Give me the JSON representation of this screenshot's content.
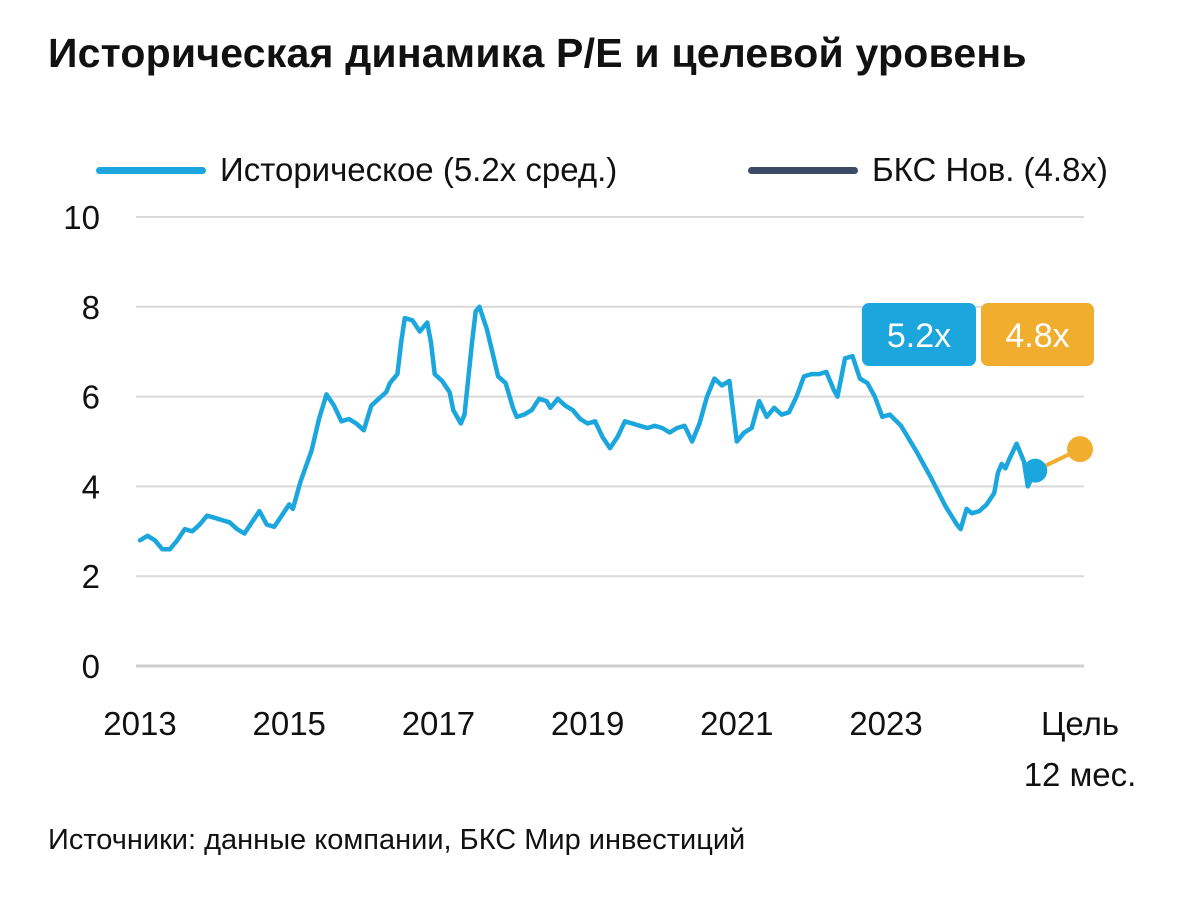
{
  "chart_data": {
    "type": "line",
    "title": "Историческая динамика P/E и целевой уровень",
    "source": "Источники: данные компании, БКС Мир инвестиций",
    "ylim": [
      0,
      10
    ],
    "yticks": [
      0,
      2,
      4,
      6,
      8,
      10
    ],
    "xlim": [
      2013,
      2025.6
    ],
    "xticks": [
      {
        "x": 2013,
        "label": "2013"
      },
      {
        "x": 2015,
        "label": "2015"
      },
      {
        "x": 2017,
        "label": "2017"
      },
      {
        "x": 2019,
        "label": "2019"
      },
      {
        "x": 2021,
        "label": "2021"
      },
      {
        "x": 2023,
        "label": "2023"
      }
    ],
    "target_tick": {
      "line1": "Цель",
      "line2": "12 мес."
    },
    "grid": true,
    "legend_position": "top",
    "series": [
      {
        "name": "Историческое (5.2x сред.)",
        "color": "#1BA6DE",
        "points": [
          [
            2013.0,
            2.8
          ],
          [
            2013.1,
            2.9
          ],
          [
            2013.2,
            2.8
          ],
          [
            2013.3,
            2.6
          ],
          [
            2013.4,
            2.6
          ],
          [
            2013.5,
            2.8
          ],
          [
            2013.6,
            3.05
          ],
          [
            2013.7,
            3.0
          ],
          [
            2013.8,
            3.15
          ],
          [
            2013.9,
            3.35
          ],
          [
            2014.0,
            3.3
          ],
          [
            2014.1,
            3.25
          ],
          [
            2014.2,
            3.2
          ],
          [
            2014.3,
            3.05
          ],
          [
            2014.4,
            2.95
          ],
          [
            2014.5,
            3.2
          ],
          [
            2014.6,
            3.45
          ],
          [
            2014.7,
            3.15
          ],
          [
            2014.8,
            3.1
          ],
          [
            2014.9,
            3.35
          ],
          [
            2015.0,
            3.6
          ],
          [
            2015.05,
            3.5
          ],
          [
            2015.15,
            4.1
          ],
          [
            2015.3,
            4.8
          ],
          [
            2015.4,
            5.5
          ],
          [
            2015.5,
            6.05
          ],
          [
            2015.6,
            5.8
          ],
          [
            2015.7,
            5.45
          ],
          [
            2015.8,
            5.5
          ],
          [
            2015.9,
            5.4
          ],
          [
            2016.0,
            5.25
          ],
          [
            2016.1,
            5.8
          ],
          [
            2016.2,
            5.95
          ],
          [
            2016.3,
            6.1
          ],
          [
            2016.35,
            6.3
          ],
          [
            2016.45,
            6.5
          ],
          [
            2016.5,
            7.2
          ],
          [
            2016.55,
            7.75
          ],
          [
            2016.65,
            7.7
          ],
          [
            2016.75,
            7.45
          ],
          [
            2016.85,
            7.65
          ],
          [
            2016.9,
            7.2
          ],
          [
            2016.95,
            6.5
          ],
          [
            2017.05,
            6.35
          ],
          [
            2017.15,
            6.1
          ],
          [
            2017.2,
            5.7
          ],
          [
            2017.3,
            5.4
          ],
          [
            2017.35,
            5.6
          ],
          [
            2017.45,
            7.2
          ],
          [
            2017.5,
            7.9
          ],
          [
            2017.55,
            8.0
          ],
          [
            2017.65,
            7.5
          ],
          [
            2017.75,
            6.8
          ],
          [
            2017.8,
            6.45
          ],
          [
            2017.9,
            6.3
          ],
          [
            2018.0,
            5.75
          ],
          [
            2018.05,
            5.55
          ],
          [
            2018.15,
            5.6
          ],
          [
            2018.25,
            5.7
          ],
          [
            2018.35,
            5.95
          ],
          [
            2018.45,
            5.9
          ],
          [
            2018.5,
            5.75
          ],
          [
            2018.6,
            5.95
          ],
          [
            2018.7,
            5.8
          ],
          [
            2018.8,
            5.7
          ],
          [
            2018.9,
            5.5
          ],
          [
            2019.0,
            5.4
          ],
          [
            2019.1,
            5.45
          ],
          [
            2019.2,
            5.1
          ],
          [
            2019.3,
            4.85
          ],
          [
            2019.4,
            5.1
          ],
          [
            2019.5,
            5.45
          ],
          [
            2019.6,
            5.4
          ],
          [
            2019.7,
            5.35
          ],
          [
            2019.8,
            5.3
          ],
          [
            2019.9,
            5.35
          ],
          [
            2020.0,
            5.3
          ],
          [
            2020.1,
            5.2
          ],
          [
            2020.2,
            5.3
          ],
          [
            2020.3,
            5.35
          ],
          [
            2020.4,
            5.0
          ],
          [
            2020.5,
            5.4
          ],
          [
            2020.6,
            6.0
          ],
          [
            2020.7,
            6.4
          ],
          [
            2020.8,
            6.25
          ],
          [
            2020.9,
            6.35
          ],
          [
            2021.0,
            5.0
          ],
          [
            2021.1,
            5.2
          ],
          [
            2021.2,
            5.3
          ],
          [
            2021.3,
            5.9
          ],
          [
            2021.4,
            5.55
          ],
          [
            2021.5,
            5.75
          ],
          [
            2021.6,
            5.6
          ],
          [
            2021.7,
            5.65
          ],
          [
            2021.8,
            6.0
          ],
          [
            2021.9,
            6.45
          ],
          [
            2022.0,
            6.5
          ],
          [
            2022.1,
            6.5
          ],
          [
            2022.2,
            6.55
          ],
          [
            2022.3,
            6.15
          ],
          [
            2022.35,
            6.0
          ],
          [
            2022.45,
            6.85
          ],
          [
            2022.55,
            6.9
          ],
          [
            2022.65,
            6.4
          ],
          [
            2022.75,
            6.3
          ],
          [
            2022.85,
            6.0
          ],
          [
            2022.95,
            5.55
          ],
          [
            2023.05,
            5.6
          ],
          [
            2023.2,
            5.35
          ],
          [
            2023.4,
            4.8
          ],
          [
            2023.6,
            4.2
          ],
          [
            2023.8,
            3.55
          ],
          [
            2023.95,
            3.15
          ],
          [
            2024.0,
            3.05
          ],
          [
            2024.08,
            3.5
          ],
          [
            2024.15,
            3.4
          ],
          [
            2024.25,
            3.45
          ],
          [
            2024.35,
            3.6
          ],
          [
            2024.45,
            3.85
          ],
          [
            2024.5,
            4.3
          ],
          [
            2024.55,
            4.5
          ],
          [
            2024.6,
            4.4
          ],
          [
            2024.65,
            4.6
          ],
          [
            2024.75,
            4.95
          ],
          [
            2024.85,
            4.55
          ],
          [
            2024.9,
            4.0
          ],
          [
            2025.0,
            4.35
          ]
        ]
      },
      {
        "name": "БКС Нов. (4.8x)",
        "color": "#3B4A67",
        "points": []
      },
      {
        "name": "Цель 12 мес.",
        "color": "#F0AD2E",
        "points": [
          [
            2025.0,
            4.35
          ],
          [
            2025.6,
            4.83
          ]
        ]
      }
    ],
    "annotations": [
      {
        "text": "5.2x",
        "color": "#1BA6DE",
        "value": 5.2
      },
      {
        "text": "4.8x",
        "color": "#F0AD2E",
        "value": 4.8
      }
    ]
  }
}
